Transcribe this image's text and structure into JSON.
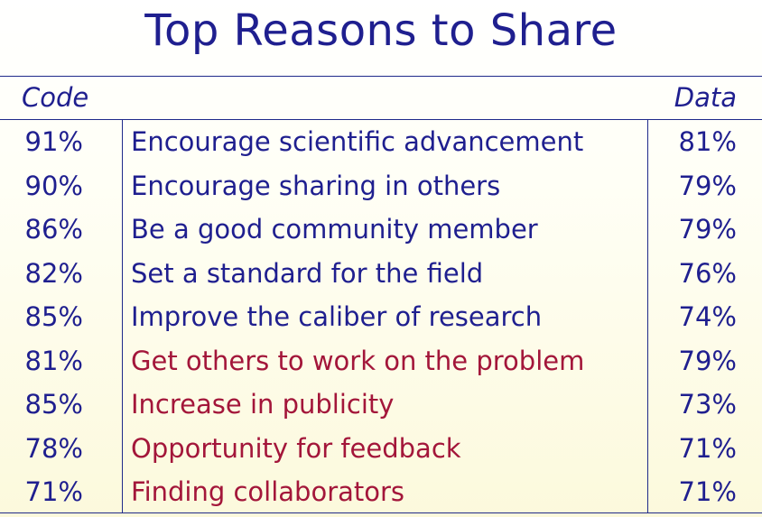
{
  "title": "Top Reasons to Share",
  "headers": {
    "code": "Code",
    "data": "Data"
  },
  "colors": {
    "primary": "#1f1f8f",
    "highlight": "#a3163a"
  },
  "rows": [
    {
      "code": "91%",
      "reason": "Encourage scientific advancement",
      "data": "81%",
      "highlight": false
    },
    {
      "code": "90%",
      "reason": "Encourage sharing in others",
      "data": "79%",
      "highlight": false
    },
    {
      "code": "86%",
      "reason": "Be a good community member",
      "data": "79%",
      "highlight": false
    },
    {
      "code": "82%",
      "reason": "Set a standard for the field",
      "data": "76%",
      "highlight": false
    },
    {
      "code": "85%",
      "reason": "Improve the caliber of research",
      "data": "74%",
      "highlight": false
    },
    {
      "code": "81%",
      "reason": "Get others to work on the problem",
      "data": "79%",
      "highlight": true
    },
    {
      "code": "85%",
      "reason": "Increase in publicity",
      "data": "73%",
      "highlight": true
    },
    {
      "code": "78%",
      "reason": "Opportunity for feedback",
      "data": "71%",
      "highlight": true
    },
    {
      "code": "71%",
      "reason": "Finding collaborators",
      "data": "71%",
      "highlight": true
    }
  ]
}
